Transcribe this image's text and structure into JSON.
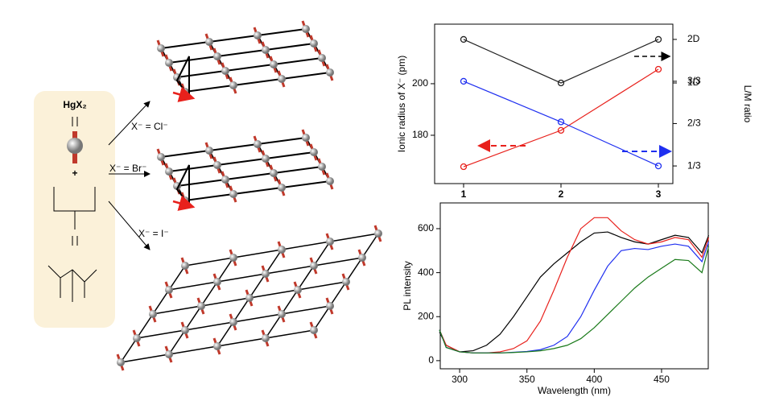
{
  "diagram": {
    "reagent": "HgX₂",
    "labels": [
      "X⁻ = Cl⁻",
      "X⁻ = Br⁻",
      "X⁻ = I⁻"
    ]
  },
  "chart_data": [
    {
      "type": "line",
      "categories": [
        "1",
        "2",
        "3"
      ],
      "ylabel": "Ionic radius of X⁻ (pm)",
      "y2label": "L/M ratio",
      "ylim": [
        161.25,
        223.1
      ],
      "yticks": [
        180,
        200
      ],
      "y2lim": [
        0.194,
        1.45
      ],
      "y2ticks": [
        {
          "value": 0.333,
          "label": "1/3"
        },
        {
          "value": 0.667,
          "label": "2/3"
        },
        {
          "value": 1,
          "label": "3/3"
        }
      ],
      "y3lim": [
        -1.31,
        2.35
      ],
      "y3ticks": [
        {
          "value": 1,
          "label": "1D"
        },
        {
          "value": 2,
          "label": "2D"
        }
      ],
      "series": [
        {
          "color": "#e8211c",
          "axis": "y",
          "values": [
            167.8,
            181.9,
            205.6
          ]
        },
        {
          "color": "#1f2ff0",
          "axis": "y2",
          "values": [
            1,
            0.68,
            0.333
          ]
        },
        {
          "color": "#222222",
          "axis": "y3",
          "values": [
            2,
            1,
            2
          ]
        }
      ]
    },
    {
      "type": "line",
      "ylabel": "PL intensity",
      "xlabel": "Wavelength (nm)",
      "x": [
        285,
        290,
        300,
        310,
        320,
        330,
        340,
        350,
        360,
        370,
        380,
        390,
        400,
        410,
        420,
        430,
        440,
        450,
        460,
        470,
        480,
        485
      ],
      "xlim": [
        285.6,
        484.7
      ],
      "xticks": [
        300,
        350,
        400,
        450
      ],
      "ylim": [
        -37,
        717
      ],
      "yticks": [
        0,
        200,
        400,
        600
      ],
      "series": [
        {
          "color": "#000000",
          "values": [
            130,
            70,
            40,
            45,
            70,
            120,
            200,
            290,
            380,
            440,
            490,
            540,
            580,
            585,
            560,
            540,
            530,
            550,
            570,
            560,
            490,
            570
          ]
        },
        {
          "color": "#e8211c",
          "values": [
            140,
            70,
            40,
            35,
            35,
            40,
            55,
            90,
            180,
            320,
            470,
            600,
            650,
            650,
            590,
            550,
            530,
            540,
            560,
            550,
            470,
            560
          ]
        },
        {
          "color": "#1f2ff0",
          "values": [
            140,
            60,
            40,
            35,
            35,
            35,
            38,
            42,
            50,
            70,
            110,
            200,
            320,
            430,
            500,
            510,
            505,
            520,
            530,
            520,
            450,
            540
          ]
        },
        {
          "color": "#1a7a1a",
          "values": [
            140,
            60,
            40,
            35,
            35,
            35,
            37,
            40,
            45,
            55,
            70,
            100,
            150,
            210,
            270,
            330,
            380,
            420,
            460,
            455,
            400,
            520
          ]
        }
      ]
    }
  ]
}
